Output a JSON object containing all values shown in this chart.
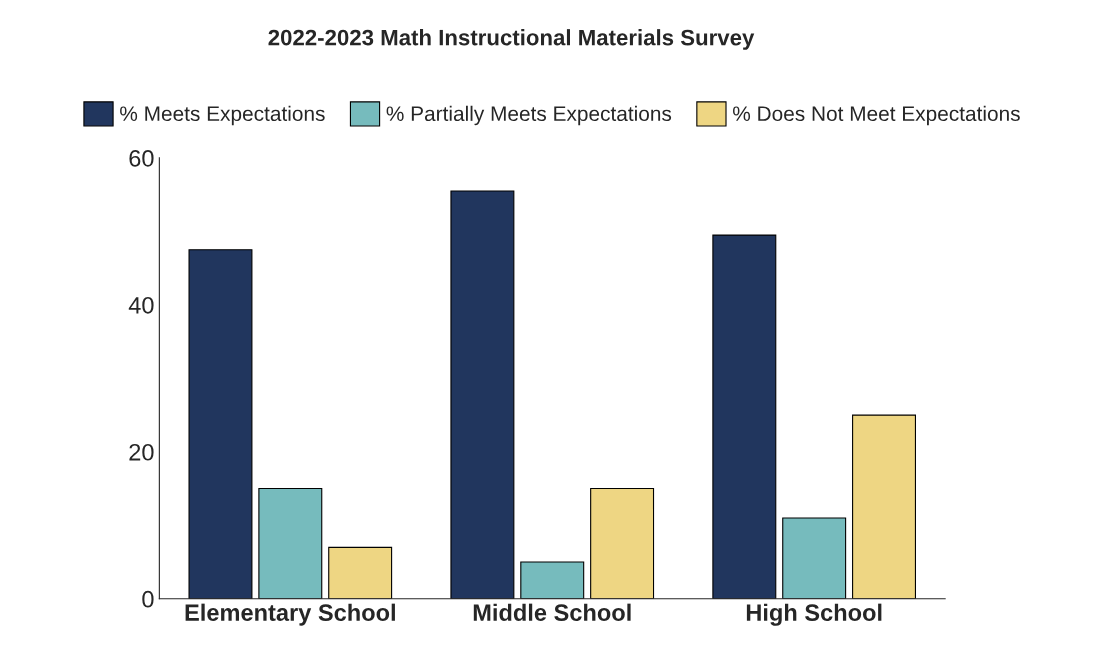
{
  "chart_data": {
    "type": "bar",
    "title": "2022-2023 Math Instructional Materials Survey",
    "categories": [
      "Elementary School",
      "Middle School",
      "High School"
    ],
    "series": [
      {
        "name": "% Meets Expectations",
        "color": "#21365e",
        "values": [
          47.5,
          55.5,
          49.5
        ]
      },
      {
        "name": "% Partially Meets Expectations",
        "color": "#76bbbd",
        "values": [
          15,
          5,
          11
        ]
      },
      {
        "name": "% Does Not Meet Expectations",
        "color": "#eed683",
        "values": [
          7,
          15,
          25
        ]
      }
    ],
    "ylim": [
      0,
      60
    ],
    "yticks": [
      0,
      20,
      40,
      60
    ],
    "grid": false,
    "legend": "top"
  }
}
